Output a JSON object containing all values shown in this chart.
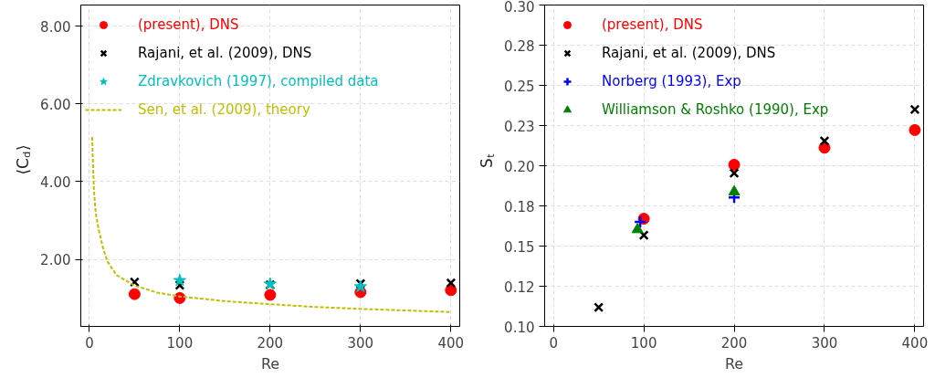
{
  "chart_data": [
    {
      "type": "scatter",
      "xlabel": "Re",
      "ylabel": "⟨C$_{d}$⟩",
      "xlim": [
        -9.5,
        409.8
      ],
      "ylim": [
        0.28,
        8.54
      ],
      "xticks": [
        0,
        100,
        200,
        300,
        400
      ],
      "yticks": [
        {
          "value": 2,
          "label": "2.00"
        },
        {
          "value": 4,
          "label": "4.00"
        },
        {
          "value": 6,
          "label": "6.00"
        },
        {
          "value": 8,
          "label": "8.00"
        }
      ],
      "grid": true,
      "legend": "top left",
      "series": [
        {
          "name": "(present), DNS",
          "color": "#ff0000",
          "marker": "circle",
          "x": [
            50,
            100,
            200,
            300,
            400
          ],
          "values": [
            1.11,
            1.01,
            1.09,
            1.16,
            1.21
          ]
        },
        {
          "name": "Rajani, et al. (2009), DNS",
          "color": "#000000",
          "marker": "cross",
          "x": [
            50,
            100,
            200,
            300,
            400
          ],
          "values": [
            1.42,
            1.34,
            1.35,
            1.38,
            1.4
          ]
        },
        {
          "name": "Zdravkovich (1997), compiled data",
          "color": "#00bfbf",
          "marker": "star",
          "x": [
            100,
            200,
            300
          ],
          "values": [
            1.46,
            1.37,
            1.3
          ]
        },
        {
          "name": "Sen, et al. (2009), theory",
          "color": "#bfbf00",
          "type": "line",
          "line_style": "dashed",
          "x": [
            3,
            5,
            7,
            10,
            15,
            20,
            30,
            50,
            75,
            100,
            150,
            200,
            250,
            300,
            350,
            400
          ],
          "values": [
            5.15,
            3.8,
            3.2,
            2.8,
            2.3,
            1.95,
            1.6,
            1.33,
            1.15,
            1.05,
            0.93,
            0.85,
            0.78,
            0.73,
            0.69,
            0.65
          ]
        }
      ]
    },
    {
      "type": "scatter",
      "xlabel": "Re",
      "ylabel": "S$_{t}$",
      "xlim": [
        -9.8,
        409.7
      ],
      "ylim": [
        0.1,
        0.3
      ],
      "xticks": [
        0,
        100,
        200,
        300,
        400
      ],
      "yticks": [
        {
          "value": 0.1,
          "label": "0.10"
        },
        {
          "value": 0.125,
          "label": "0.12"
        },
        {
          "value": 0.15,
          "label": "0.15"
        },
        {
          "value": 0.175,
          "label": "0.18"
        },
        {
          "value": 0.2,
          "label": "0.20"
        },
        {
          "value": 0.225,
          "label": "0.23"
        },
        {
          "value": 0.25,
          "label": "0.25"
        },
        {
          "value": 0.275,
          "label": "0.28"
        },
        {
          "value": 0.3,
          "label": "0.30"
        }
      ],
      "grid": true,
      "legend": "top left",
      "series": [
        {
          "name": "(present), DNS",
          "color": "#ff0000",
          "marker": "circle",
          "x": [
            100,
            200,
            300,
            400
          ],
          "values": [
            0.167,
            0.2006,
            0.2112,
            0.2222
          ]
        },
        {
          "name": "Rajani, et al. (2009), DNS",
          "color": "#000000",
          "marker": "cross",
          "x": [
            50,
            100,
            200,
            300,
            400
          ],
          "values": [
            0.1118,
            0.1568,
            0.1954,
            0.2154,
            0.235
          ]
        },
        {
          "name": "Norberg (1993), Exp",
          "color": "#0000ff",
          "marker": "plus",
          "x": [
            96,
            200
          ],
          "values": [
            0.165,
            0.1802
          ]
        },
        {
          "name": "Williamson & Roshko (1990), Exp",
          "color": "#008000",
          "marker": "triangle",
          "x": [
            93,
            200
          ],
          "values": [
            0.1603,
            0.1837
          ]
        }
      ]
    }
  ]
}
